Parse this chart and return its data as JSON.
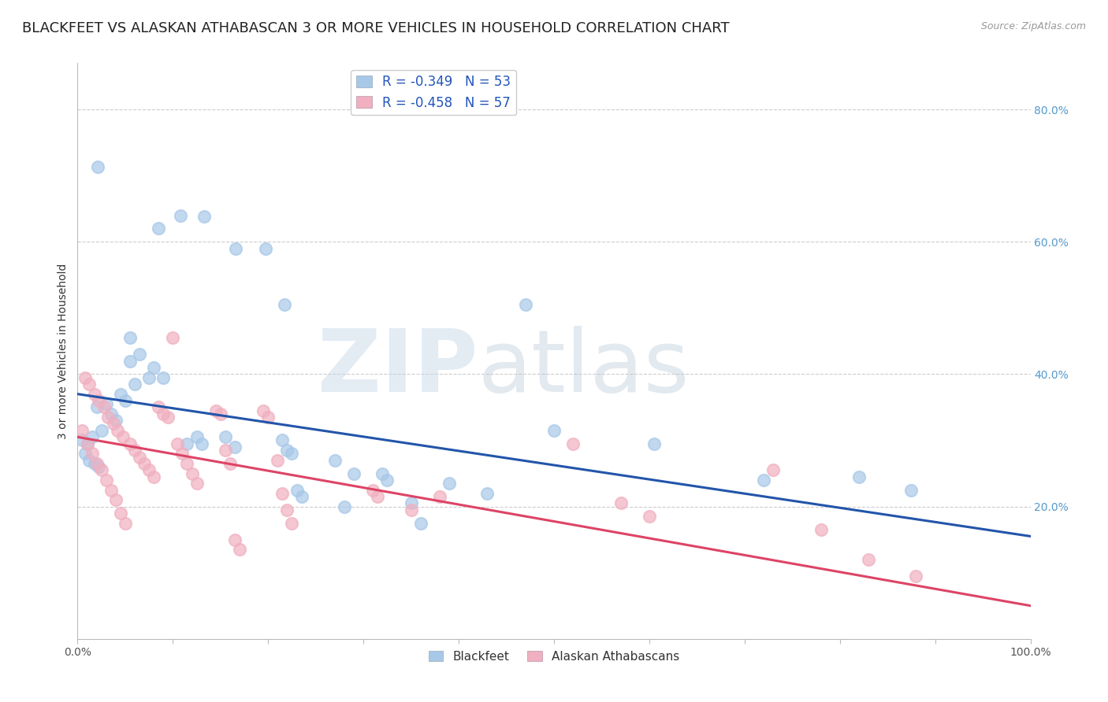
{
  "title": "BLACKFEET VS ALASKAN ATHABASCAN 3 OR MORE VEHICLES IN HOUSEHOLD CORRELATION CHART",
  "source": "Source: ZipAtlas.com",
  "ylabel": "3 or more Vehicles in Household",
  "xlim": [
    0,
    1.0
  ],
  "ylim": [
    0,
    0.87
  ],
  "legend_blue_r": "-0.349",
  "legend_blue_n": "53",
  "legend_pink_r": "-0.458",
  "legend_pink_n": "57",
  "blue_color": "#a8c8e8",
  "pink_color": "#f0b0c0",
  "blue_line_color": "#2255aa",
  "pink_line_color": "#dd4466",
  "blue_scatter": [
    [
      0.021,
      0.713
    ],
    [
      0.133,
      0.638
    ],
    [
      0.108,
      0.64
    ],
    [
      0.166,
      0.59
    ],
    [
      0.197,
      0.59
    ],
    [
      0.085,
      0.62
    ],
    [
      0.055,
      0.455
    ],
    [
      0.217,
      0.505
    ],
    [
      0.055,
      0.42
    ],
    [
      0.065,
      0.43
    ],
    [
      0.075,
      0.395
    ],
    [
      0.08,
      0.41
    ],
    [
      0.09,
      0.395
    ],
    [
      0.06,
      0.385
    ],
    [
      0.045,
      0.37
    ],
    [
      0.05,
      0.36
    ],
    [
      0.02,
      0.35
    ],
    [
      0.03,
      0.355
    ],
    [
      0.035,
      0.34
    ],
    [
      0.04,
      0.33
    ],
    [
      0.025,
      0.315
    ],
    [
      0.015,
      0.305
    ],
    [
      0.01,
      0.295
    ],
    [
      0.005,
      0.3
    ],
    [
      0.008,
      0.28
    ],
    [
      0.012,
      0.27
    ],
    [
      0.018,
      0.265
    ],
    [
      0.022,
      0.26
    ],
    [
      0.115,
      0.295
    ],
    [
      0.125,
      0.305
    ],
    [
      0.13,
      0.295
    ],
    [
      0.155,
      0.305
    ],
    [
      0.165,
      0.29
    ],
    [
      0.215,
      0.3
    ],
    [
      0.22,
      0.285
    ],
    [
      0.225,
      0.28
    ],
    [
      0.27,
      0.27
    ],
    [
      0.29,
      0.25
    ],
    [
      0.32,
      0.25
    ],
    [
      0.325,
      0.24
    ],
    [
      0.39,
      0.235
    ],
    [
      0.47,
      0.505
    ],
    [
      0.5,
      0.315
    ],
    [
      0.605,
      0.295
    ],
    [
      0.43,
      0.22
    ],
    [
      0.35,
      0.205
    ],
    [
      0.36,
      0.175
    ],
    [
      0.28,
      0.2
    ],
    [
      0.23,
      0.225
    ],
    [
      0.235,
      0.215
    ],
    [
      0.72,
      0.24
    ],
    [
      0.82,
      0.245
    ],
    [
      0.875,
      0.225
    ]
  ],
  "pink_scatter": [
    [
      0.008,
      0.395
    ],
    [
      0.012,
      0.385
    ],
    [
      0.018,
      0.37
    ],
    [
      0.022,
      0.36
    ],
    [
      0.028,
      0.35
    ],
    [
      0.032,
      0.335
    ],
    [
      0.038,
      0.325
    ],
    [
      0.042,
      0.315
    ],
    [
      0.048,
      0.305
    ],
    [
      0.055,
      0.295
    ],
    [
      0.06,
      0.285
    ],
    [
      0.065,
      0.275
    ],
    [
      0.07,
      0.265
    ],
    [
      0.075,
      0.255
    ],
    [
      0.08,
      0.245
    ],
    [
      0.085,
      0.35
    ],
    [
      0.09,
      0.34
    ],
    [
      0.095,
      0.335
    ],
    [
      0.005,
      0.315
    ],
    [
      0.01,
      0.295
    ],
    [
      0.015,
      0.28
    ],
    [
      0.02,
      0.265
    ],
    [
      0.025,
      0.255
    ],
    [
      0.03,
      0.24
    ],
    [
      0.035,
      0.225
    ],
    [
      0.04,
      0.21
    ],
    [
      0.045,
      0.19
    ],
    [
      0.05,
      0.175
    ],
    [
      0.1,
      0.455
    ],
    [
      0.105,
      0.295
    ],
    [
      0.11,
      0.28
    ],
    [
      0.115,
      0.265
    ],
    [
      0.12,
      0.25
    ],
    [
      0.125,
      0.235
    ],
    [
      0.145,
      0.345
    ],
    [
      0.15,
      0.34
    ],
    [
      0.155,
      0.285
    ],
    [
      0.16,
      0.265
    ],
    [
      0.165,
      0.15
    ],
    [
      0.17,
      0.135
    ],
    [
      0.195,
      0.345
    ],
    [
      0.2,
      0.335
    ],
    [
      0.21,
      0.27
    ],
    [
      0.215,
      0.22
    ],
    [
      0.22,
      0.195
    ],
    [
      0.225,
      0.175
    ],
    [
      0.31,
      0.225
    ],
    [
      0.315,
      0.215
    ],
    [
      0.35,
      0.195
    ],
    [
      0.38,
      0.215
    ],
    [
      0.52,
      0.295
    ],
    [
      0.57,
      0.205
    ],
    [
      0.6,
      0.185
    ],
    [
      0.73,
      0.255
    ],
    [
      0.78,
      0.165
    ],
    [
      0.83,
      0.12
    ],
    [
      0.88,
      0.095
    ]
  ],
  "blue_line_x": [
    0.0,
    1.0
  ],
  "blue_line_y": [
    0.37,
    0.155
  ],
  "pink_line_x": [
    0.0,
    1.0
  ],
  "pink_line_y": [
    0.305,
    0.05
  ],
  "watermark_zip": "ZIP",
  "watermark_atlas": "atlas",
  "background_color": "#ffffff",
  "grid_color": "#cccccc",
  "title_fontsize": 13,
  "axis_fontsize": 10,
  "legend_fontsize": 12,
  "marker_size": 120,
  "marker_lw": 1.5
}
